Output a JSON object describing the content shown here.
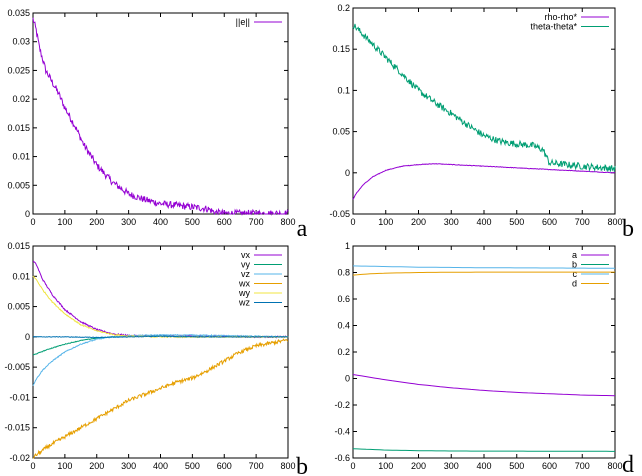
{
  "chart_data": [
    {
      "type": "line",
      "panel_label": "a",
      "xlim": [
        0,
        800
      ],
      "ylim": [
        0,
        0.035
      ],
      "xticks": [
        0,
        100,
        200,
        300,
        400,
        500,
        600,
        700,
        800
      ],
      "yticks": [
        0,
        0.005,
        0.01,
        0.015,
        0.02,
        0.025,
        0.03,
        0.035
      ],
      "ytick_labels": [
        "0",
        "0.005",
        "0.01",
        "0.015",
        "0.02",
        "0.025",
        "0.03",
        "0.035"
      ],
      "legend_position": "top-right",
      "series": [
        {
          "name": "||e||",
          "color": "#9400d3",
          "noise": 0.0006,
          "x": [
            0,
            10,
            20,
            40,
            60,
            80,
            100,
            130,
            160,
            200,
            250,
            300,
            350,
            400,
            450,
            500,
            550,
            570,
            600,
            650,
            700,
            800
          ],
          "y": [
            0.034,
            0.032,
            0.029,
            0.025,
            0.023,
            0.021,
            0.0185,
            0.0155,
            0.012,
            0.0085,
            0.0055,
            0.0035,
            0.0025,
            0.0018,
            0.0015,
            0.0012,
            0.0009,
            0.0003,
            0.0001,
            0.0001,
            0.0001,
            0.0001
          ]
        }
      ]
    },
    {
      "type": "line",
      "panel_label": "b",
      "xlim": [
        0,
        800
      ],
      "ylim": [
        -0.05,
        0.2
      ],
      "xticks": [
        0,
        100,
        200,
        300,
        400,
        500,
        600,
        700,
        800
      ],
      "yticks": [
        -0.05,
        0,
        0.05,
        0.1,
        0.15,
        0.2
      ],
      "ytick_labels": [
        "-0.05",
        "0",
        "0.05",
        "0.1",
        "0.15",
        "0.2"
      ],
      "legend_position": "top-right",
      "series": [
        {
          "name": "rho-rho*",
          "color": "#9400d3",
          "noise": 0.0003,
          "x": [
            0,
            10,
            30,
            60,
            100,
            150,
            200,
            250,
            300,
            400,
            500,
            600,
            700,
            800
          ],
          "y": [
            -0.032,
            -0.025,
            -0.015,
            -0.005,
            0.003,
            0.008,
            0.01,
            0.011,
            0.01,
            0.008,
            0.006,
            0.004,
            0.002,
            0.0
          ]
        },
        {
          "name": "theta-theta*",
          "color": "#009e73",
          "noise": 0.004,
          "x": [
            0,
            20,
            50,
            100,
            150,
            200,
            250,
            300,
            350,
            400,
            450,
            500,
            550,
            580,
            600,
            650,
            700,
            800
          ],
          "y": [
            0.18,
            0.172,
            0.16,
            0.14,
            0.12,
            0.1,
            0.085,
            0.072,
            0.058,
            0.045,
            0.038,
            0.035,
            0.033,
            0.028,
            0.012,
            0.01,
            0.008,
            0.005
          ]
        }
      ]
    },
    {
      "type": "line",
      "panel_label": "b",
      "xlim": [
        0,
        800
      ],
      "ylim": [
        -0.02,
        0.015
      ],
      "xticks": [
        0,
        100,
        200,
        300,
        400,
        500,
        600,
        700,
        800
      ],
      "yticks": [
        -0.02,
        -0.015,
        -0.01,
        -0.005,
        0,
        0.005,
        0.01,
        0.015
      ],
      "ytick_labels": [
        "-0.02",
        "-0.015",
        "-0.01",
        "-0.005",
        "0",
        "0.005",
        "0.01",
        "0.015"
      ],
      "legend_position": "top-right",
      "series": [
        {
          "name": "vx",
          "color": "#9400d3",
          "noise": 0.00012,
          "x": [
            0,
            10,
            30,
            60,
            100,
            150,
            200,
            250,
            300,
            400,
            500,
            600,
            700,
            800
          ],
          "y": [
            0.0125,
            0.012,
            0.0095,
            0.007,
            0.0045,
            0.0025,
            0.0012,
            0.0005,
            0.0002,
            0.0001,
            0.0001,
            0.0001,
            0.0,
            0.0
          ]
        },
        {
          "name": "vy",
          "color": "#009e73",
          "noise": 5e-05,
          "x": [
            0,
            10,
            50,
            100,
            150,
            200,
            250,
            300,
            400,
            500,
            600,
            700,
            800
          ],
          "y": [
            -0.003,
            -0.0028,
            -0.002,
            -0.0012,
            -0.0006,
            -0.0002,
            0.0,
            0.0001,
            0.0001,
            0.0,
            0.0,
            0.0,
            0.0
          ]
        },
        {
          "name": "vz",
          "color": "#56b4e9",
          "noise": 8e-05,
          "x": [
            0,
            10,
            30,
            60,
            100,
            150,
            200,
            250,
            300,
            400,
            500,
            600,
            700,
            800
          ],
          "y": [
            -0.008,
            -0.007,
            -0.0055,
            -0.004,
            -0.0025,
            -0.0012,
            -0.0004,
            0.0,
            0.0002,
            0.0003,
            0.0003,
            0.0002,
            0.0001,
            0.0
          ]
        },
        {
          "name": "wx",
          "color": "#e69f00",
          "noise": 0.0003,
          "x": [
            0,
            10,
            50,
            100,
            150,
            200,
            250,
            300,
            350,
            400,
            450,
            500,
            550,
            600,
            650,
            700,
            800
          ],
          "y": [
            -0.02,
            -0.0195,
            -0.018,
            -0.0165,
            -0.015,
            -0.0135,
            -0.012,
            -0.0105,
            -0.0095,
            -0.0085,
            -0.0075,
            -0.0068,
            -0.0055,
            -0.004,
            -0.0025,
            -0.0015,
            -0.0005
          ]
        },
        {
          "name": "wy",
          "color": "#f0e442",
          "noise": 0.0001,
          "x": [
            0,
            10,
            30,
            60,
            100,
            150,
            200,
            250,
            300,
            400,
            500,
            600,
            700,
            800
          ],
          "y": [
            0.01,
            0.0095,
            0.0078,
            0.0058,
            0.0038,
            0.002,
            0.001,
            0.0004,
            0.0001,
            0.0,
            0.0,
            0.0,
            0.0,
            0.0
          ]
        },
        {
          "name": "wz",
          "color": "#0072b2",
          "noise": 5e-05,
          "x": [
            0,
            100,
            200,
            300,
            400,
            500,
            600,
            700,
            800
          ],
          "y": [
            0.0,
            0.0,
            -0.0001,
            0.0,
            0.0001,
            0.0,
            0.0,
            0.0,
            0.0
          ]
        }
      ]
    },
    {
      "type": "line",
      "panel_label": "d",
      "xlim": [
        0,
        800
      ],
      "ylim": [
        -0.6,
        1.0
      ],
      "xticks": [
        0,
        100,
        200,
        300,
        400,
        500,
        600,
        700,
        800
      ],
      "yticks": [
        -0.6,
        -0.4,
        -0.2,
        0,
        0.2,
        0.4,
        0.6,
        0.8,
        1.0
      ],
      "ytick_labels": [
        "-0.6",
        "-0.4",
        "-0.2",
        "0",
        "0.2",
        "0.4",
        "0.6",
        "0.8",
        "1"
      ],
      "legend_position": "top-right",
      "series": [
        {
          "name": "a",
          "color": "#9400d3",
          "noise": 0.0,
          "x": [
            0,
            100,
            200,
            300,
            400,
            500,
            600,
            700,
            800
          ],
          "y": [
            0.03,
            -0.01,
            -0.045,
            -0.07,
            -0.09,
            -0.105,
            -0.115,
            -0.125,
            -0.13
          ]
        },
        {
          "name": "b",
          "color": "#009e73",
          "noise": 0.0,
          "x": [
            0,
            100,
            200,
            300,
            400,
            500,
            600,
            700,
            800
          ],
          "y": [
            -0.53,
            -0.54,
            -0.545,
            -0.547,
            -0.548,
            -0.548,
            -0.549,
            -0.549,
            -0.55
          ]
        },
        {
          "name": "c",
          "color": "#56b4e9",
          "noise": 0.0,
          "x": [
            0,
            100,
            200,
            300,
            400,
            500,
            600,
            700,
            800
          ],
          "y": [
            0.85,
            0.845,
            0.84,
            0.838,
            0.836,
            0.835,
            0.834,
            0.833,
            0.832
          ]
        },
        {
          "name": "d",
          "color": "#e69f00",
          "noise": 0.0,
          "x": [
            0,
            50,
            100,
            200,
            300,
            400,
            500,
            600,
            700,
            800
          ],
          "y": [
            0.78,
            0.79,
            0.795,
            0.8,
            0.802,
            0.803,
            0.803,
            0.803,
            0.803,
            0.803
          ]
        }
      ]
    }
  ]
}
